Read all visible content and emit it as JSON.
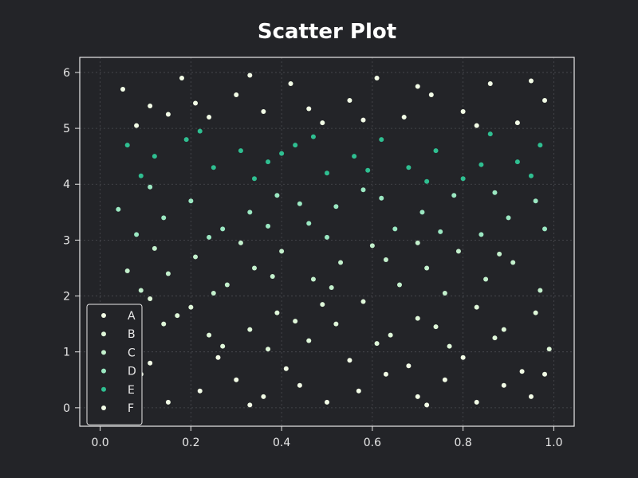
{
  "chart_data": {
    "type": "scatter",
    "title": "Scatter Plot",
    "xlabel": "",
    "ylabel": "",
    "xlim": [
      -0.045,
      1.045
    ],
    "ylim": [
      -0.33,
      6.27
    ],
    "xticks": [
      0.0,
      0.2,
      0.4,
      0.6,
      0.8,
      1.0
    ],
    "xtick_labels": [
      "0.0",
      "0.2",
      "0.4",
      "0.6",
      "0.8",
      "1.0"
    ],
    "yticks": [
      0,
      1,
      2,
      3,
      4,
      5,
      6
    ],
    "ytick_labels": [
      "0",
      "1",
      "2",
      "3",
      "4",
      "5",
      "6"
    ],
    "grid": true,
    "legend_position": "lower-left",
    "series": [
      {
        "name": "A",
        "color": "#f2fce6",
        "points": [
          [
            0.09,
            0.6
          ],
          [
            0.15,
            0.1
          ],
          [
            0.22,
            0.3
          ],
          [
            0.3,
            0.5
          ],
          [
            0.36,
            0.2
          ],
          [
            0.44,
            0.4
          ],
          [
            0.5,
            0.1
          ],
          [
            0.57,
            0.3
          ],
          [
            0.63,
            0.6
          ],
          [
            0.7,
            0.2
          ],
          [
            0.76,
            0.5
          ],
          [
            0.83,
            0.1
          ],
          [
            0.89,
            0.4
          ],
          [
            0.95,
            0.2
          ],
          [
            0.11,
            0.8
          ],
          [
            0.26,
            0.9
          ],
          [
            0.41,
            0.7
          ],
          [
            0.55,
            0.85
          ],
          [
            0.68,
            0.75
          ],
          [
            0.8,
            0.9
          ],
          [
            0.93,
            0.65
          ],
          [
            0.33,
            0.05
          ],
          [
            0.72,
            0.05
          ],
          [
            0.98,
            0.6
          ],
          [
            0.05,
            0.35
          ]
        ]
      },
      {
        "name": "B",
        "color": "#dff7d9",
        "points": [
          [
            0.08,
            1.2
          ],
          [
            0.14,
            1.5
          ],
          [
            0.2,
            1.8
          ],
          [
            0.27,
            1.1
          ],
          [
            0.33,
            1.4
          ],
          [
            0.39,
            1.7
          ],
          [
            0.46,
            1.2
          ],
          [
            0.52,
            1.5
          ],
          [
            0.58,
            1.9
          ],
          [
            0.64,
            1.3
          ],
          [
            0.7,
            1.6
          ],
          [
            0.77,
            1.1
          ],
          [
            0.83,
            1.8
          ],
          [
            0.89,
            1.4
          ],
          [
            0.96,
            1.7
          ],
          [
            0.11,
            1.95
          ],
          [
            0.24,
            1.3
          ],
          [
            0.37,
            1.05
          ],
          [
            0.49,
            1.85
          ],
          [
            0.61,
            1.15
          ],
          [
            0.74,
            1.45
          ],
          [
            0.87,
            1.25
          ],
          [
            0.99,
            1.05
          ],
          [
            0.17,
            1.65
          ],
          [
            0.43,
            1.55
          ]
        ]
      },
      {
        "name": "C",
        "color": "#c3f0cc",
        "points": [
          [
            0.09,
            2.1
          ],
          [
            0.15,
            2.4
          ],
          [
            0.21,
            2.7
          ],
          [
            0.28,
            2.2
          ],
          [
            0.34,
            2.5
          ],
          [
            0.4,
            2.8
          ],
          [
            0.47,
            2.3
          ],
          [
            0.53,
            2.6
          ],
          [
            0.6,
            2.9
          ],
          [
            0.66,
            2.2
          ],
          [
            0.72,
            2.5
          ],
          [
            0.79,
            2.8
          ],
          [
            0.85,
            2.3
          ],
          [
            0.91,
            2.6
          ],
          [
            0.97,
            2.1
          ],
          [
            0.12,
            2.85
          ],
          [
            0.25,
            2.05
          ],
          [
            0.38,
            2.35
          ],
          [
            0.51,
            2.15
          ],
          [
            0.63,
            2.65
          ],
          [
            0.76,
            2.05
          ],
          [
            0.88,
            2.75
          ],
          [
            0.06,
            2.45
          ],
          [
            0.31,
            2.95
          ],
          [
            0.7,
            2.95
          ]
        ]
      },
      {
        "name": "D",
        "color": "#9be8c2",
        "points": [
          [
            0.08,
            3.1
          ],
          [
            0.14,
            3.4
          ],
          [
            0.2,
            3.7
          ],
          [
            0.27,
            3.2
          ],
          [
            0.33,
            3.5
          ],
          [
            0.39,
            3.8
          ],
          [
            0.46,
            3.3
          ],
          [
            0.52,
            3.6
          ],
          [
            0.58,
            3.9
          ],
          [
            0.65,
            3.2
          ],
          [
            0.71,
            3.5
          ],
          [
            0.78,
            3.8
          ],
          [
            0.84,
            3.1
          ],
          [
            0.9,
            3.4
          ],
          [
            0.96,
            3.7
          ],
          [
            0.11,
            3.95
          ],
          [
            0.24,
            3.05
          ],
          [
            0.37,
            3.25
          ],
          [
            0.5,
            3.05
          ],
          [
            0.62,
            3.75
          ],
          [
            0.75,
            3.15
          ],
          [
            0.87,
            3.85
          ],
          [
            0.04,
            3.55
          ],
          [
            0.44,
            3.65
          ],
          [
            0.98,
            3.2
          ]
        ]
      },
      {
        "name": "E",
        "color": "#2fbf91",
        "points": [
          [
            0.06,
            4.7
          ],
          [
            0.12,
            4.5
          ],
          [
            0.19,
            4.8
          ],
          [
            0.25,
            4.3
          ],
          [
            0.31,
            4.6
          ],
          [
            0.37,
            4.4
          ],
          [
            0.43,
            4.7
          ],
          [
            0.5,
            4.2
          ],
          [
            0.56,
            4.5
          ],
          [
            0.62,
            4.8
          ],
          [
            0.68,
            4.3
          ],
          [
            0.74,
            4.6
          ],
          [
            0.8,
            4.1
          ],
          [
            0.86,
            4.9
          ],
          [
            0.92,
            4.4
          ],
          [
            0.97,
            4.7
          ],
          [
            0.09,
            4.15
          ],
          [
            0.22,
            4.95
          ],
          [
            0.34,
            4.1
          ],
          [
            0.47,
            4.85
          ],
          [
            0.59,
            4.25
          ],
          [
            0.72,
            4.05
          ],
          [
            0.84,
            4.35
          ],
          [
            0.95,
            4.15
          ],
          [
            0.4,
            4.55
          ]
        ]
      },
      {
        "name": "F",
        "color": "#f2fce6",
        "points": [
          [
            0.05,
            5.7
          ],
          [
            0.11,
            5.4
          ],
          [
            0.18,
            5.9
          ],
          [
            0.24,
            5.2
          ],
          [
            0.3,
            5.6
          ],
          [
            0.36,
            5.3
          ],
          [
            0.42,
            5.8
          ],
          [
            0.49,
            5.1
          ],
          [
            0.55,
            5.5
          ],
          [
            0.61,
            5.9
          ],
          [
            0.67,
            5.2
          ],
          [
            0.73,
            5.6
          ],
          [
            0.8,
            5.3
          ],
          [
            0.86,
            5.8
          ],
          [
            0.92,
            5.1
          ],
          [
            0.98,
            5.5
          ],
          [
            0.08,
            5.05
          ],
          [
            0.21,
            5.45
          ],
          [
            0.33,
            5.95
          ],
          [
            0.46,
            5.35
          ],
          [
            0.58,
            5.15
          ],
          [
            0.7,
            5.75
          ],
          [
            0.83,
            5.05
          ],
          [
            0.95,
            5.85
          ],
          [
            0.15,
            5.25
          ]
        ]
      }
    ]
  },
  "colors": {
    "background": "#232428",
    "axis": "#e8e8e8",
    "grid": "#4a4b50"
  }
}
